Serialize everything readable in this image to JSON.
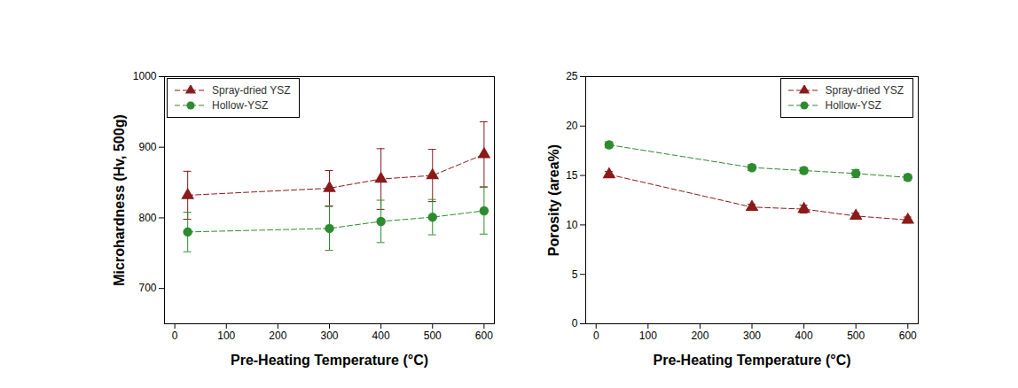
{
  "chart_data": [
    {
      "type": "line",
      "x_label": "Pre-Heating Temperature (°C)",
      "y_label": "Microhardness (Hv, 500g)",
      "x": [
        25,
        300,
        400,
        500,
        600
      ],
      "xlim": [
        -20,
        620
      ],
      "xticks": [
        0,
        100,
        200,
        300,
        400,
        500,
        600
      ],
      "ylim": [
        650,
        1000
      ],
      "yticks": [
        700,
        800,
        900,
        1000
      ],
      "grid": false,
      "legend": "upper left",
      "series": [
        {
          "name": "Spray-dried YSZ",
          "color": "#8b1a1a",
          "marker": "triangle",
          "line_style": "dashed",
          "values": [
            832,
            842,
            855,
            860,
            890
          ],
          "errors": [
            34,
            25,
            43,
            37,
            46
          ]
        },
        {
          "name": "Hollow-YSZ",
          "color": "#2e8b2e",
          "marker": "circle",
          "line_style": "dashed",
          "values": [
            780,
            785,
            795,
            801,
            810
          ],
          "errors": [
            28,
            31,
            30,
            25,
            33
          ]
        }
      ]
    },
    {
      "type": "line",
      "x_label": "Pre-Heating Temperature (°C)",
      "y_label": "Porosity (area%)",
      "x": [
        25,
        300,
        400,
        500,
        600
      ],
      "xlim": [
        -20,
        620
      ],
      "xticks": [
        0,
        100,
        200,
        300,
        400,
        500,
        600
      ],
      "ylim": [
        0,
        25
      ],
      "yticks": [
        0,
        5,
        10,
        15,
        20,
        25
      ],
      "grid": false,
      "legend": "upper right",
      "series": [
        {
          "name": "Spray-dried YSZ",
          "color": "#8b1a1a",
          "marker": "triangle",
          "line_style": "dashed",
          "values": [
            15.1,
            11.8,
            11.6,
            10.9,
            10.5
          ],
          "errors": [
            0.3,
            0.3,
            0.4,
            0.3,
            0.3
          ]
        },
        {
          "name": "Hollow-YSZ",
          "color": "#2e8b2e",
          "marker": "circle",
          "line_style": "dashed",
          "values": [
            18.1,
            15.8,
            15.5,
            15.2,
            14.8
          ],
          "errors": [
            0.3,
            0.3,
            0.3,
            0.4,
            0.3
          ]
        }
      ]
    }
  ]
}
